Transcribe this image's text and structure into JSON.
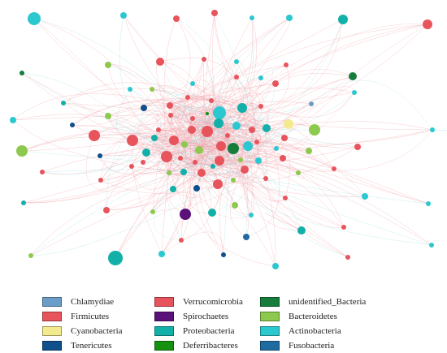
{
  "legend": [
    {
      "label": "Chlamydiae",
      "color": "#6a9ec9"
    },
    {
      "label": "Firmicutes",
      "color": "#e8545c"
    },
    {
      "label": "Cyanobacteria",
      "color": "#f2ea8c"
    },
    {
      "label": "Tenericutes",
      "color": "#0e4f8c"
    },
    {
      "label": "Verrucomicrobia",
      "color": "#e8545c"
    },
    {
      "label": "Spirochaetes",
      "color": "#5a127a"
    },
    {
      "label": "Proteobacteria",
      "color": "#12b0a8"
    },
    {
      "label": "Deferribacteres",
      "color": "#15900f"
    },
    {
      "label": "unidentified_Bacteria",
      "color": "#167d3c"
    },
    {
      "label": "Bacteroidetes",
      "color": "#8cc94e"
    },
    {
      "label": "Actinobacteria",
      "color": "#2cc8d0"
    },
    {
      "label": "Fusobacteria",
      "color": "#1f6aa0"
    }
  ],
  "colors": {
    "edge_positive": "#f4a0a8",
    "edge_negative": "#9ee0e6"
  }
}
